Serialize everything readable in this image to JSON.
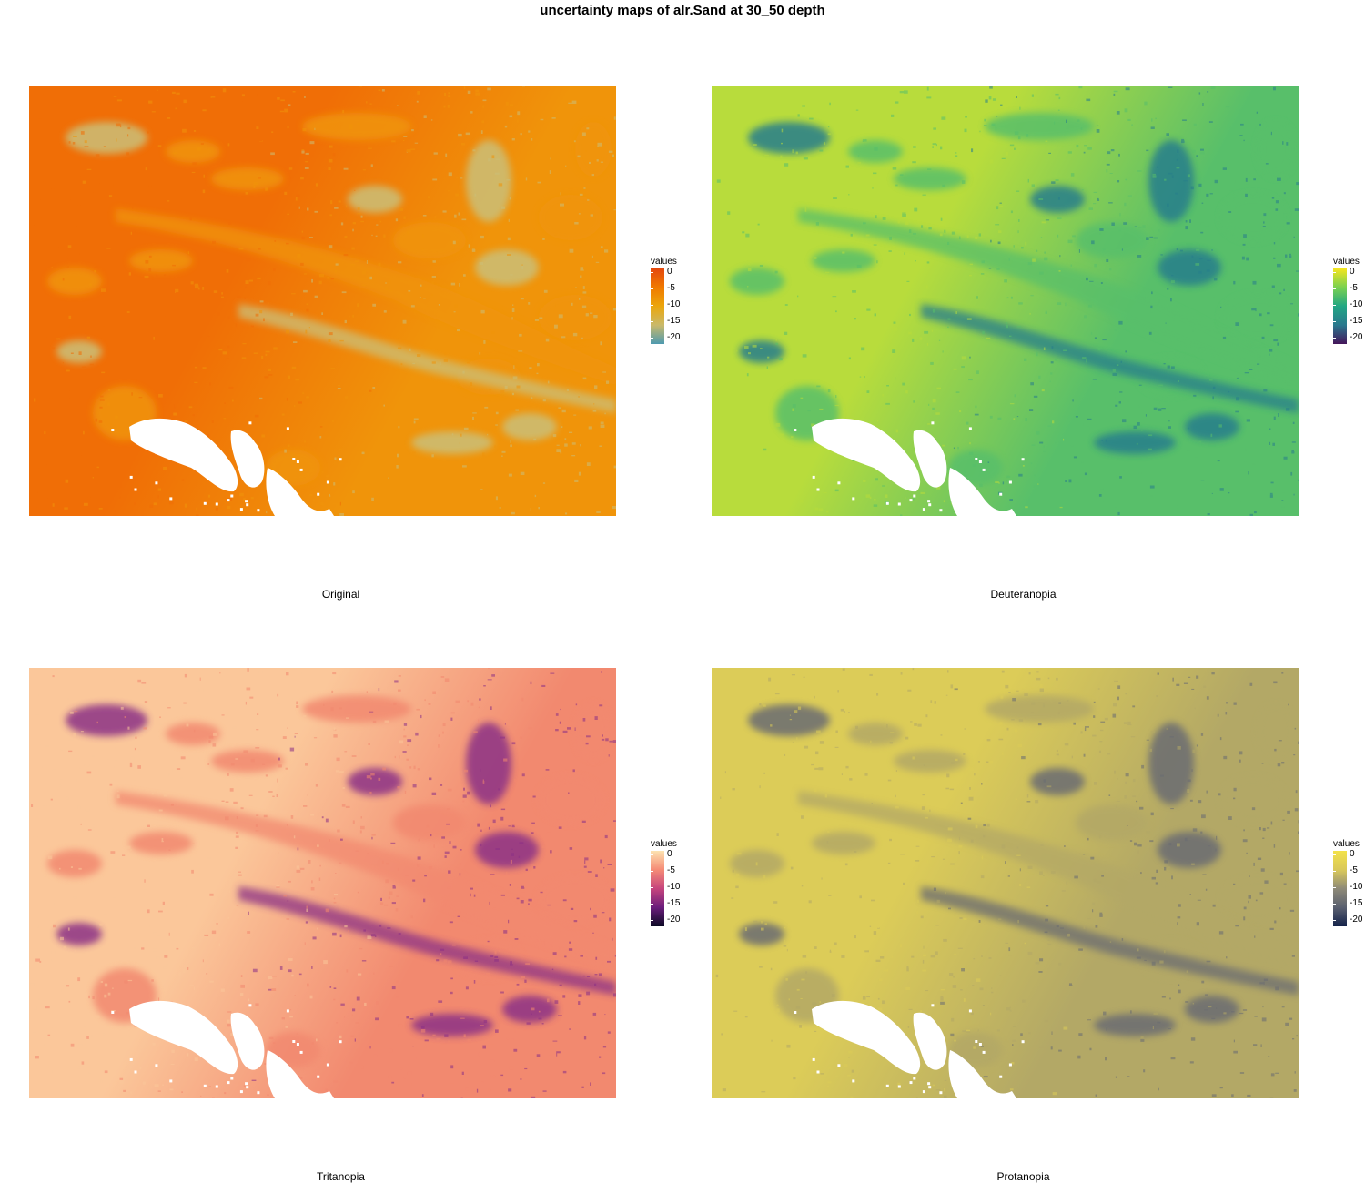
{
  "title": "uncertainty maps of alr.Sand at 30_50 depth",
  "panels": [
    {
      "id": "original",
      "caption": "Original",
      "legend_title": "values",
      "ticks": [
        "0",
        "-5",
        "-10",
        "-15",
        "-20"
      ],
      "tick_values": [
        0,
        -5,
        -10,
        -15,
        -20
      ],
      "range": [
        -22,
        1
      ],
      "palette": [
        "#e4480e",
        "#f07a00",
        "#eba60c",
        "#c9b96a",
        "#4e9ab0"
      ],
      "base_color": "#f06e06",
      "mid_color": "#f0940a",
      "light_color": "#cbbf78"
    },
    {
      "id": "deuteranopia",
      "caption": "Deuteranopia",
      "legend_title": "values",
      "ticks": [
        "0",
        "-5",
        "-10",
        "-15",
        "-20"
      ],
      "tick_values": [
        0,
        -5,
        -10,
        -15,
        -20
      ],
      "range": [
        -22,
        1
      ],
      "palette": [
        "#f5e61f",
        "#7ad151",
        "#22a784",
        "#2a788e",
        "#45155a"
      ],
      "base_color": "#b8dc3c",
      "mid_color": "#58bf6a",
      "light_color": "#277e8c"
    },
    {
      "id": "tritanopia",
      "caption": "Tritanopia",
      "legend_title": "values",
      "ticks": [
        "0",
        "-5",
        "-10",
        "-15",
        "-20"
      ],
      "tick_values": [
        0,
        -5,
        -10,
        -15,
        -20
      ],
      "range": [
        -22,
        1
      ],
      "palette": [
        "#fde3b0",
        "#f58b76",
        "#c6457d",
        "#6b1d7c",
        "#0b0a24"
      ],
      "base_color": "#fbc79a",
      "mid_color": "#f2896f",
      "light_color": "#8c3086"
    },
    {
      "id": "protanopia",
      "caption": "Protanopia",
      "legend_title": "values",
      "ticks": [
        "0",
        "-5",
        "-10",
        "-15",
        "-20"
      ],
      "tick_values": [
        0,
        -5,
        -10,
        -15,
        -20
      ],
      "range": [
        -22,
        1
      ],
      "palette": [
        "#f3e24a",
        "#d9c859",
        "#8e8a78",
        "#5a6070",
        "#14224a"
      ],
      "base_color": "#dccc58",
      "mid_color": "#b3a866",
      "light_color": "#6a6c72"
    }
  ]
}
